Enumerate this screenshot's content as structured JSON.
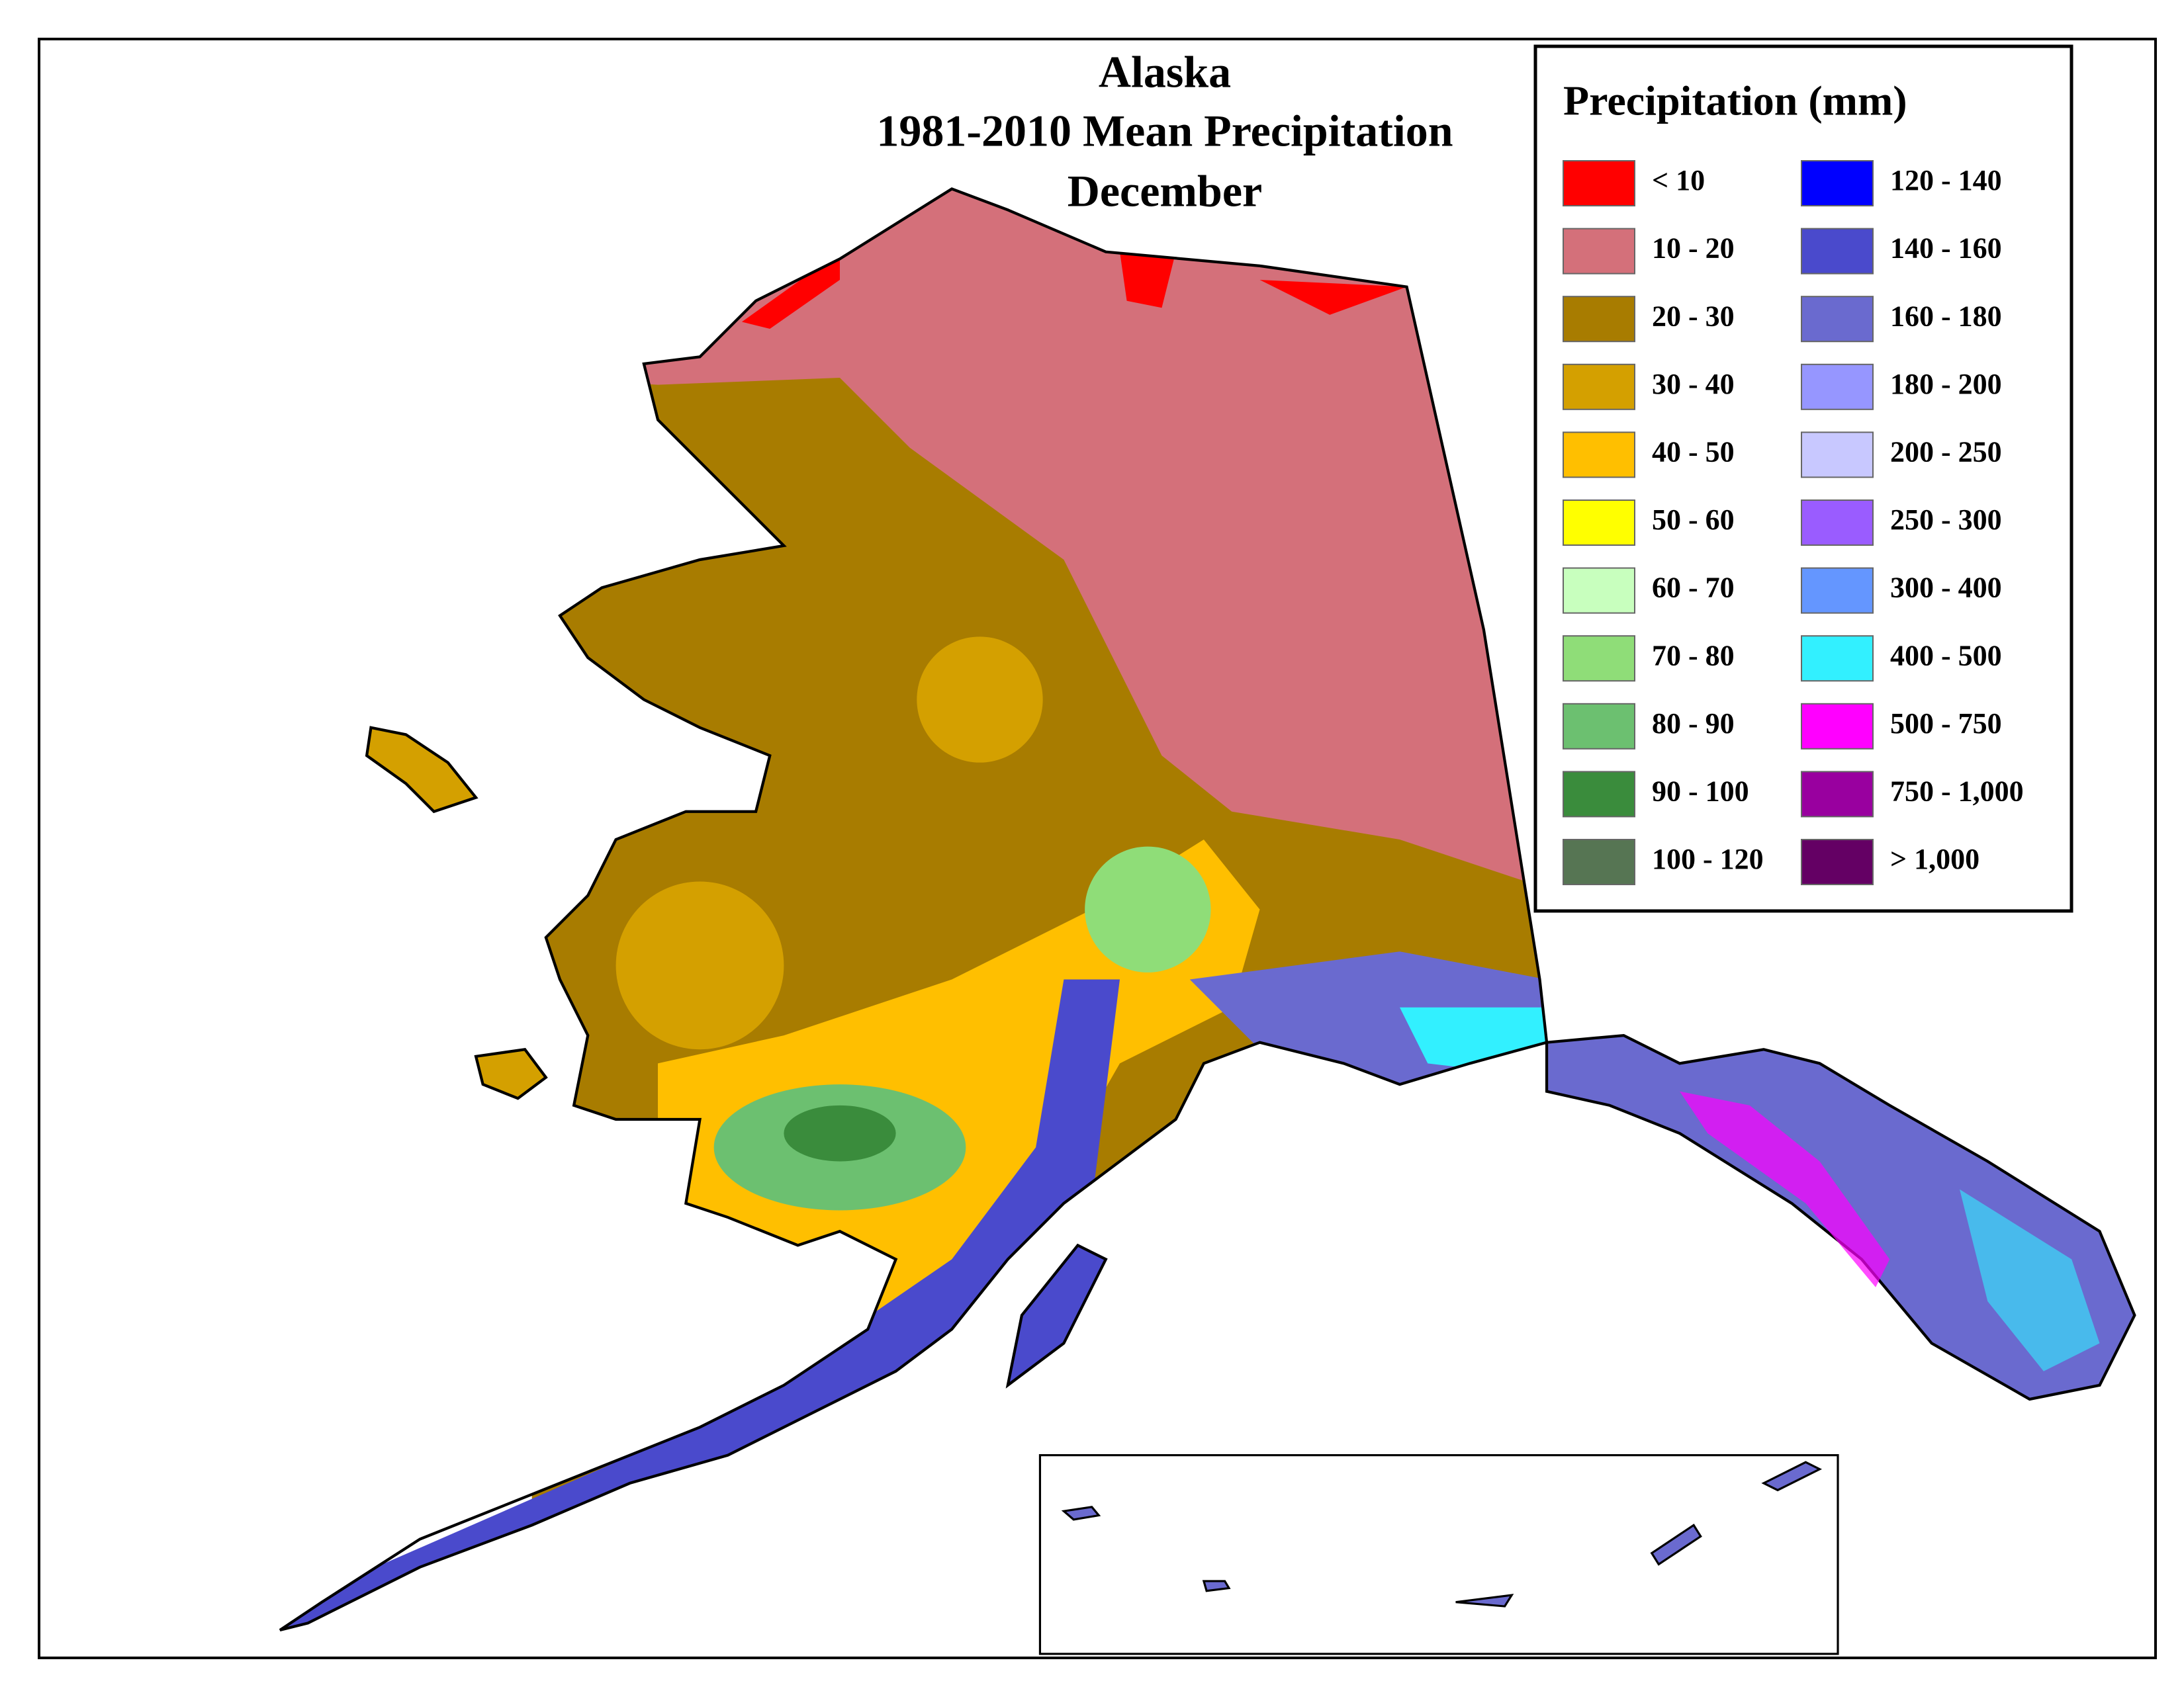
{
  "title": [
    "Alaska",
    "1981-2010 Mean Precipitation",
    "December"
  ],
  "legend": {
    "title": "Precipitation (mm)",
    "items": [
      {
        "label": "< 10",
        "color": "#ff0000"
      },
      {
        "label": "10 - 20",
        "color": "#d4707a"
      },
      {
        "label": "20 - 30",
        "color": "#a87c00"
      },
      {
        "label": "30 - 40",
        "color": "#d4a000"
      },
      {
        "label": "40 - 50",
        "color": "#ffbf00"
      },
      {
        "label": "50 - 60",
        "color": "#ffff00"
      },
      {
        "label": "60 - 70",
        "color": "#c8ffbe"
      },
      {
        "label": "70 - 80",
        "color": "#8fdd78"
      },
      {
        "label": "80 - 90",
        "color": "#6cc070"
      },
      {
        "label": "90 - 100",
        "color": "#3a8c3c"
      },
      {
        "label": "100 - 120",
        "color": "#567553"
      },
      {
        "label": "120 - 140",
        "color": "#0000ff"
      },
      {
        "label": "140 - 160",
        "color": "#4a4acc"
      },
      {
        "label": "160 - 180",
        "color": "#6a6acf"
      },
      {
        "label": "180 - 200",
        "color": "#9696ff"
      },
      {
        "label": "200 - 250",
        "color": "#c8c8ff"
      },
      {
        "label": "250 - 300",
        "color": "#9a5cff"
      },
      {
        "label": "300 - 400",
        "color": "#6496ff"
      },
      {
        "label": "400 - 500",
        "color": "#32f0ff"
      },
      {
        "label": "500 - 750",
        "color": "#ff00ff"
      },
      {
        "label": "750 - 1,000",
        "color": "#99009f"
      },
      {
        "label": "> 1,000",
        "color": "#640064"
      }
    ]
  }
}
